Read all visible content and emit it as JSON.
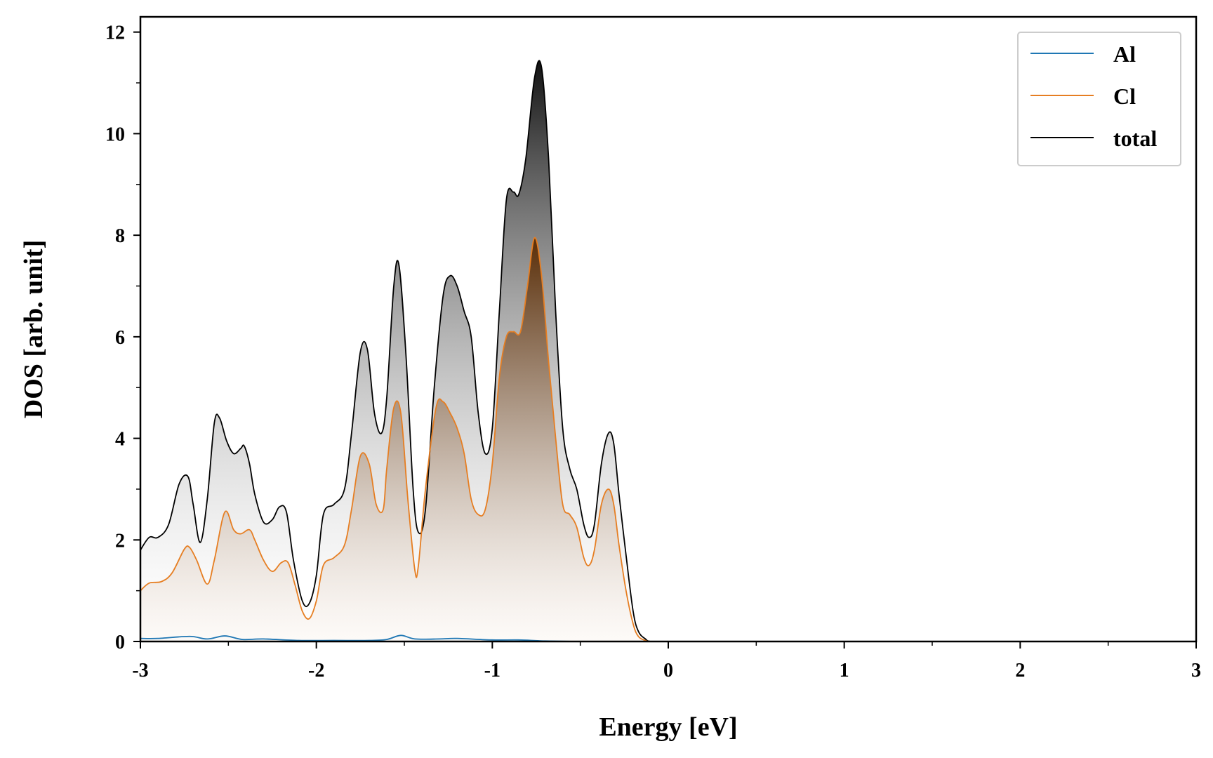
{
  "chart_data": {
    "type": "area",
    "xlabel": "Energy [eV]",
    "ylabel": "DOS [arb. unit]",
    "xlim": [
      -3,
      3
    ],
    "ylim": [
      0,
      12.3
    ],
    "x_ticks": [
      -3,
      -2,
      -1,
      0,
      1,
      2,
      3
    ],
    "y_ticks": [
      0,
      2,
      4,
      6,
      8,
      10,
      12
    ],
    "legend_position": "top-right",
    "colors": {
      "Al": "#1f77b4",
      "Cl": "#e67e22",
      "total": "#000000"
    },
    "series": [
      {
        "name": "Al",
        "color": "#1f77b4",
        "x": [
          -3,
          -2.9,
          -2.72,
          -2.62,
          -2.52,
          -2.42,
          -2.3,
          -2.1,
          -1.9,
          -1.7,
          -1.6,
          -1.52,
          -1.44,
          -1.3,
          -1.2,
          -1.0,
          -0.85,
          -0.7,
          -0.5,
          -0.3,
          -0.15,
          0,
          3
        ],
        "y": [
          0.06,
          0.06,
          0.1,
          0.05,
          0.11,
          0.04,
          0.05,
          0.02,
          0.02,
          0.02,
          0.04,
          0.12,
          0.05,
          0.05,
          0.06,
          0.03,
          0.03,
          0.01,
          0.0,
          0.0,
          0.0,
          0.0,
          0.0
        ]
      },
      {
        "name": "Cl",
        "color": "#e67e22",
        "x": [
          -3,
          -2.95,
          -2.88,
          -2.82,
          -2.75,
          -2.72,
          -2.68,
          -2.62,
          -2.58,
          -2.52,
          -2.47,
          -2.43,
          -2.38,
          -2.35,
          -2.3,
          -2.25,
          -2.2,
          -2.16,
          -2.12,
          -2.08,
          -2.04,
          -2.0,
          -1.96,
          -1.9,
          -1.84,
          -1.8,
          -1.75,
          -1.7,
          -1.66,
          -1.62,
          -1.6,
          -1.56,
          -1.52,
          -1.48,
          -1.44,
          -1.42,
          -1.38,
          -1.32,
          -1.28,
          -1.24,
          -1.2,
          -1.16,
          -1.12,
          -1.08,
          -1.04,
          -1.0,
          -0.96,
          -0.92,
          -0.88,
          -0.84,
          -0.8,
          -0.76,
          -0.72,
          -0.68,
          -0.64,
          -0.6,
          -0.56,
          -0.52,
          -0.48,
          -0.45,
          -0.42,
          -0.38,
          -0.34,
          -0.31,
          -0.28,
          -0.24,
          -0.2,
          -0.17,
          -0.13,
          -0.1,
          0,
          3
        ],
        "y": [
          1.0,
          1.15,
          1.18,
          1.35,
          1.82,
          1.85,
          1.6,
          1.13,
          1.6,
          2.55,
          2.2,
          2.12,
          2.2,
          2.0,
          1.6,
          1.38,
          1.55,
          1.55,
          1.1,
          0.6,
          0.45,
          0.8,
          1.5,
          1.65,
          1.9,
          2.6,
          3.65,
          3.5,
          2.7,
          2.6,
          3.4,
          4.6,
          4.5,
          2.8,
          1.4,
          1.5,
          3.0,
          4.6,
          4.72,
          4.5,
          4.2,
          3.7,
          2.8,
          2.5,
          2.6,
          3.5,
          5.2,
          6.0,
          6.1,
          6.1,
          7.0,
          7.95,
          7.2,
          5.5,
          4.0,
          2.7,
          2.5,
          2.25,
          1.65,
          1.5,
          1.8,
          2.7,
          3.0,
          2.7,
          1.9,
          1.0,
          0.35,
          0.1,
          0.02,
          0.0,
          0.0,
          0.0
        ]
      },
      {
        "name": "total",
        "color": "#000000",
        "x": [
          -3,
          -2.95,
          -2.9,
          -2.84,
          -2.78,
          -2.73,
          -2.7,
          -2.66,
          -2.62,
          -2.58,
          -2.55,
          -2.51,
          -2.47,
          -2.43,
          -2.41,
          -2.38,
          -2.35,
          -2.3,
          -2.25,
          -2.21,
          -2.17,
          -2.13,
          -2.08,
          -2.04,
          -2.0,
          -1.96,
          -1.9,
          -1.84,
          -1.8,
          -1.75,
          -1.71,
          -1.67,
          -1.63,
          -1.6,
          -1.56,
          -1.53,
          -1.49,
          -1.45,
          -1.42,
          -1.38,
          -1.33,
          -1.28,
          -1.24,
          -1.2,
          -1.16,
          -1.12,
          -1.08,
          -1.04,
          -1.0,
          -0.96,
          -0.92,
          -0.88,
          -0.85,
          -0.81,
          -0.76,
          -0.72,
          -0.68,
          -0.64,
          -0.6,
          -0.56,
          -0.52,
          -0.48,
          -0.45,
          -0.42,
          -0.38,
          -0.34,
          -0.31,
          -0.28,
          -0.24,
          -0.2,
          -0.17,
          -0.13,
          -0.1,
          0,
          3
        ],
        "y": [
          1.8,
          2.05,
          2.05,
          2.3,
          3.1,
          3.25,
          2.7,
          1.95,
          2.8,
          4.3,
          4.4,
          3.95,
          3.7,
          3.8,
          3.85,
          3.5,
          2.9,
          2.35,
          2.4,
          2.65,
          2.55,
          1.6,
          0.8,
          0.75,
          1.3,
          2.5,
          2.7,
          3.0,
          4.1,
          5.7,
          5.75,
          4.5,
          4.1,
          4.8,
          7.0,
          7.4,
          5.6,
          3.0,
          2.15,
          2.6,
          5.0,
          6.8,
          7.2,
          7.0,
          6.5,
          6.0,
          4.5,
          3.7,
          4.2,
          6.5,
          8.7,
          8.85,
          8.8,
          9.5,
          11.1,
          11.3,
          9.5,
          6.5,
          4.2,
          3.4,
          3.0,
          2.3,
          2.05,
          2.3,
          3.5,
          4.1,
          3.9,
          2.9,
          1.7,
          0.6,
          0.2,
          0.05,
          0.0,
          0.0,
          0.0
        ]
      }
    ]
  }
}
